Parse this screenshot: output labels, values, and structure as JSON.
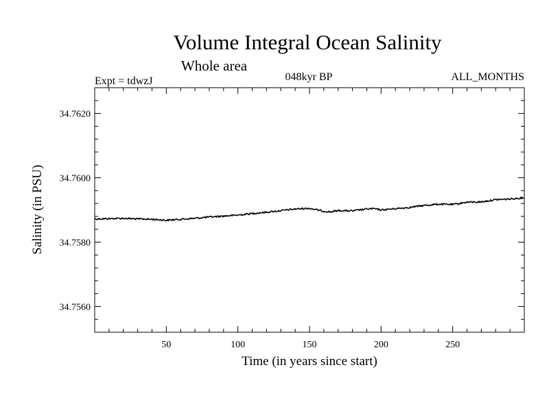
{
  "chart_data": {
    "type": "line",
    "title": "Volume Integral Ocean Salinity",
    "subtitle": "Whole area",
    "left_label": "Expt = tdwzJ",
    "center_label": "048kyr BP",
    "right_label": "ALL_MONTHS",
    "xlabel": "Time (in years since start)",
    "ylabel": "Salinity (in PSU)",
    "xlim": [
      0,
      300
    ],
    "ylim": [
      34.7552,
      34.7628
    ],
    "x_ticks": [
      50,
      100,
      150,
      200,
      250
    ],
    "y_ticks": [
      34.756,
      34.758,
      34.76,
      34.762
    ],
    "x_tick_labels": [
      "50",
      "100",
      "150",
      "200",
      "250"
    ],
    "y_tick_labels": [
      "34.7560",
      "34.7580",
      "34.7600",
      "34.7620"
    ],
    "grid": false,
    "series": [
      {
        "color": "#000000",
        "x": [
          0,
          10,
          20,
          30,
          40,
          50,
          60,
          70,
          80,
          90,
          100,
          110,
          120,
          130,
          140,
          150,
          160,
          165,
          170,
          180,
          190,
          195,
          200,
          210,
          220,
          230,
          240,
          250,
          260,
          270,
          280,
          290,
          300
        ],
        "y": [
          34.75872,
          34.75873,
          34.75874,
          34.75872,
          34.75871,
          34.75868,
          34.75871,
          34.75874,
          34.75878,
          34.75881,
          34.75884,
          34.75889,
          34.75893,
          34.75898,
          34.75903,
          34.75905,
          34.75896,
          34.75894,
          34.75898,
          34.75897,
          34.75903,
          34.75904,
          34.759,
          34.75904,
          34.75908,
          34.75914,
          34.75918,
          34.75917,
          34.75924,
          34.75925,
          34.75932,
          34.75934,
          34.75938
        ]
      }
    ]
  }
}
